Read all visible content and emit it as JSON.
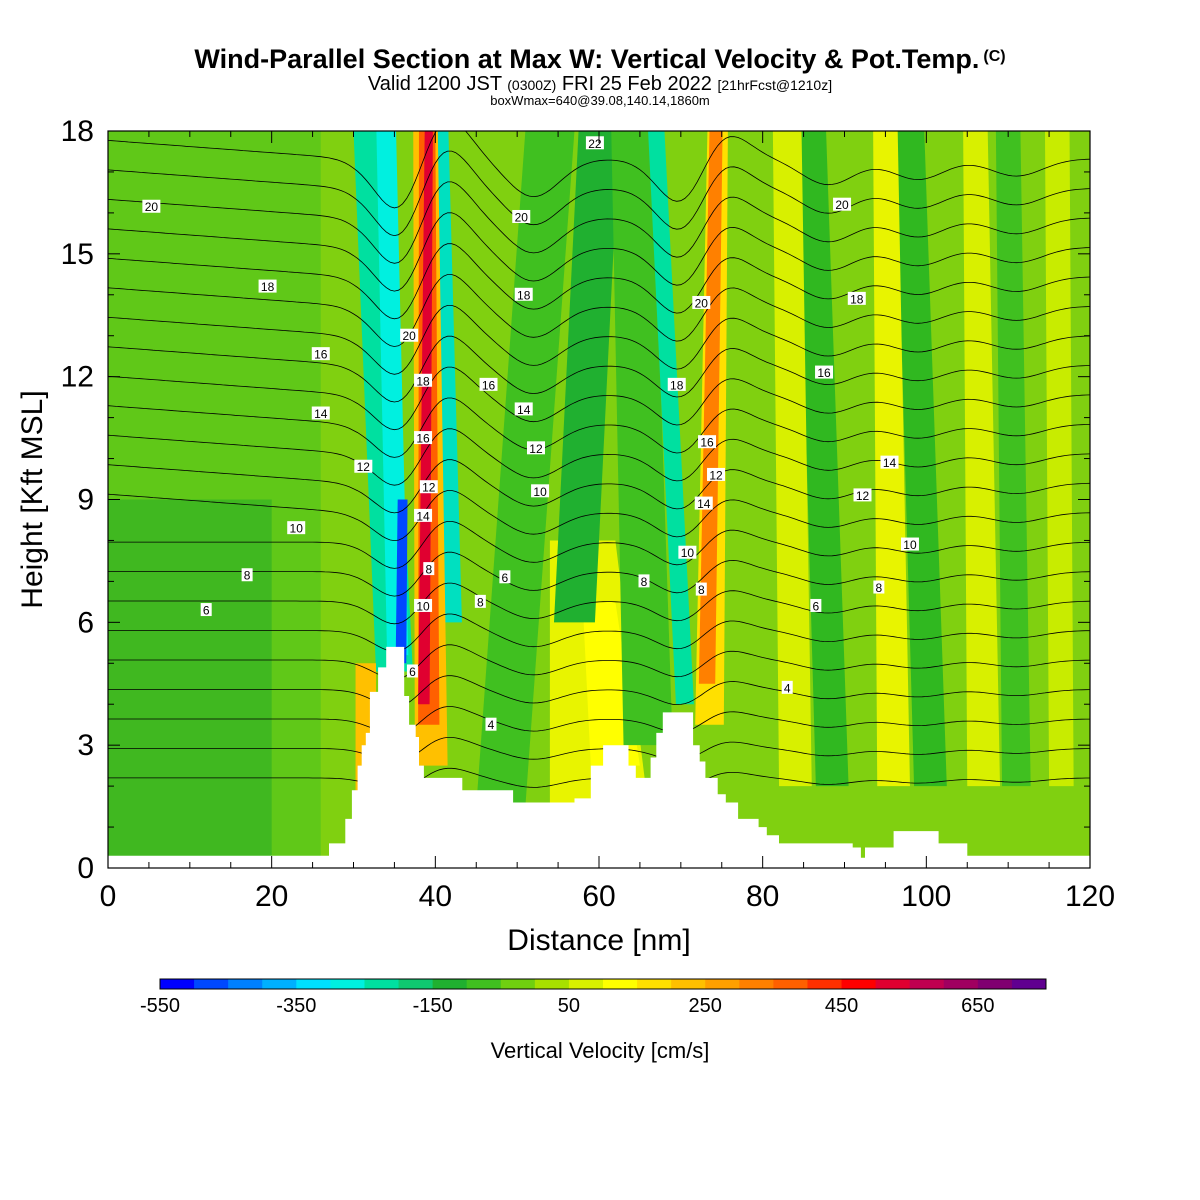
{
  "header": {
    "title": "Wind-Parallel Section at Max W: Vertical Velocity & Pot.Temp.",
    "title_tag": "(C)",
    "subtitle_main": "Valid 1200 JST",
    "subtitle_utc": "(0300Z)",
    "subtitle_date": "FRI 25 Feb 2022",
    "subtitle_fcst": "[21hrFcst@1210z]",
    "subsubtitle": "boxWmax=640@39.08,140.14,1860m"
  },
  "chart_data": {
    "type": "heatmap",
    "xlabel": "Distance [nm]",
    "ylabel": "Height [Kft MSL]",
    "xlim": [
      0,
      120
    ],
    "ylim": [
      0,
      18
    ],
    "x_ticks": [
      "0",
      "20",
      "40",
      "60",
      "80",
      "100",
      "120"
    ],
    "y_ticks": [
      "0",
      "3",
      "6",
      "9",
      "12",
      "15",
      "18"
    ],
    "colorbar": {
      "label": "Vertical Velocity [cm/s]",
      "tick_labels": [
        "-550",
        "-350",
        "-150",
        "50",
        "250",
        "450",
        "650"
      ],
      "colors": [
        "#0000ff",
        "#0048ff",
        "#0080ff",
        "#00b0ff",
        "#00e0ff",
        "#00f0e0",
        "#00e0a0",
        "#10c870",
        "#20b030",
        "#40c020",
        "#70d010",
        "#a8e000",
        "#d8f000",
        "#ffff00",
        "#ffe000",
        "#ffc000",
        "#ffa000",
        "#ff8000",
        "#ff6000",
        "#ff3000",
        "#ff0000",
        "#e00030",
        "#c00050",
        "#a00060",
        "#800070",
        "#600090"
      ]
    },
    "updraft_bands_x": [
      39.5,
      73,
      84,
      96,
      107,
      116
    ],
    "downdraft_bands_x": [
      35.5,
      42,
      70,
      89,
      101
    ],
    "max_w": {
      "value_cm_s": 640,
      "lat": 39.08,
      "lon": 140.14,
      "height_m": 1860
    },
    "terrain_profile": [
      [
        0,
        0.3
      ],
      [
        26.5,
        0.3
      ],
      [
        27,
        0.6
      ],
      [
        28.5,
        0.6
      ],
      [
        29,
        1.2
      ],
      [
        29.8,
        1.9
      ],
      [
        30.5,
        2.5
      ],
      [
        31,
        3
      ],
      [
        31.5,
        3.3
      ],
      [
        32,
        4.3
      ],
      [
        33,
        4.9
      ],
      [
        34,
        5.4
      ],
      [
        35.5,
        5.4
      ],
      [
        36.2,
        4.2
      ],
      [
        36.8,
        3.5
      ],
      [
        37.2,
        3.5
      ],
      [
        37.6,
        3.2
      ],
      [
        38,
        2.5
      ],
      [
        38.6,
        2.2
      ],
      [
        42,
        2.2
      ],
      [
        43.3,
        1.9
      ],
      [
        49.5,
        1.9
      ],
      [
        49.5,
        1.6
      ],
      [
        56.5,
        1.6
      ],
      [
        57,
        1.7
      ],
      [
        59,
        2.5
      ],
      [
        60.5,
        3.0
      ],
      [
        63.3,
        3.0
      ],
      [
        63.6,
        2.5
      ],
      [
        64.5,
        2.2
      ],
      [
        65.5,
        2.2
      ],
      [
        66,
        2.2
      ],
      [
        66.3,
        2.7
      ],
      [
        67,
        3.3
      ],
      [
        67.8,
        3.8
      ],
      [
        71,
        3.8
      ],
      [
        71.5,
        3.0
      ],
      [
        72.3,
        2.6
      ],
      [
        73,
        2.2
      ],
      [
        74.5,
        1.8
      ],
      [
        75.5,
        1.6
      ],
      [
        77,
        1.2
      ],
      [
        79.5,
        1.0
      ],
      [
        80.5,
        0.8
      ],
      [
        82,
        0.6
      ],
      [
        91,
        0.5
      ],
      [
        92,
        0.25
      ],
      [
        92.5,
        0.5
      ],
      [
        96,
        0.9
      ],
      [
        101,
        0.9
      ],
      [
        101.5,
        0.6
      ],
      [
        104.5,
        0.6
      ],
      [
        105,
        0.3
      ],
      [
        120,
        0.3
      ]
    ],
    "contour_labels": [
      {
        "text": "20",
        "x": 5.3,
        "y": 16.15
      },
      {
        "text": "18",
        "x": 19.5,
        "y": 14.2
      },
      {
        "text": "16",
        "x": 26,
        "y": 12.55
      },
      {
        "text": "14",
        "x": 26,
        "y": 11.1
      },
      {
        "text": "12",
        "x": 31.2,
        "y": 9.8
      },
      {
        "text": "10",
        "x": 23,
        "y": 8.3
      },
      {
        "text": "8",
        "x": 17,
        "y": 7.15
      },
      {
        "text": "6",
        "x": 12,
        "y": 6.3
      },
      {
        "text": "20",
        "x": 36.8,
        "y": 13.0
      },
      {
        "text": "18",
        "x": 38.5,
        "y": 11.9
      },
      {
        "text": "16",
        "x": 38.5,
        "y": 10.5
      },
      {
        "text": "12",
        "x": 39.2,
        "y": 9.3
      },
      {
        "text": "14",
        "x": 38.5,
        "y": 8.6
      },
      {
        "text": "8",
        "x": 39.2,
        "y": 7.3
      },
      {
        "text": "10",
        "x": 38.5,
        "y": 6.4
      },
      {
        "text": "6",
        "x": 37.2,
        "y": 4.8
      },
      {
        "text": "22",
        "x": 59.5,
        "y": 17.7
      },
      {
        "text": "20",
        "x": 50.5,
        "y": 15.9
      },
      {
        "text": "18",
        "x": 50.8,
        "y": 14.0
      },
      {
        "text": "16",
        "x": 46.5,
        "y": 11.8
      },
      {
        "text": "14",
        "x": 50.8,
        "y": 11.2
      },
      {
        "text": "12",
        "x": 52.3,
        "y": 10.25
      },
      {
        "text": "10",
        "x": 52.8,
        "y": 9.2
      },
      {
        "text": "6",
        "x": 48.5,
        "y": 7.1
      },
      {
        "text": "8",
        "x": 45.5,
        "y": 6.5
      },
      {
        "text": "4",
        "x": 46.8,
        "y": 3.5
      },
      {
        "text": "8",
        "x": 65.5,
        "y": 7.0
      },
      {
        "text": "20",
        "x": 72.5,
        "y": 13.8
      },
      {
        "text": "18",
        "x": 69.5,
        "y": 11.8
      },
      {
        "text": "16",
        "x": 73.2,
        "y": 10.4
      },
      {
        "text": "12",
        "x": 74.3,
        "y": 9.6
      },
      {
        "text": "14",
        "x": 72.8,
        "y": 8.9
      },
      {
        "text": "10",
        "x": 70.8,
        "y": 7.7
      },
      {
        "text": "8",
        "x": 72.5,
        "y": 6.8
      },
      {
        "text": "20",
        "x": 89.7,
        "y": 16.2
      },
      {
        "text": "18",
        "x": 91.5,
        "y": 13.9
      },
      {
        "text": "16",
        "x": 87.5,
        "y": 12.1
      },
      {
        "text": "14",
        "x": 95.5,
        "y": 9.9
      },
      {
        "text": "12",
        "x": 92.2,
        "y": 9.1
      },
      {
        "text": "10",
        "x": 98,
        "y": 7.9
      },
      {
        "text": "8",
        "x": 94.2,
        "y": 6.85
      },
      {
        "text": "6",
        "x": 86.5,
        "y": 6.4
      },
      {
        "text": "4",
        "x": 83,
        "y": 4.4
      }
    ]
  }
}
